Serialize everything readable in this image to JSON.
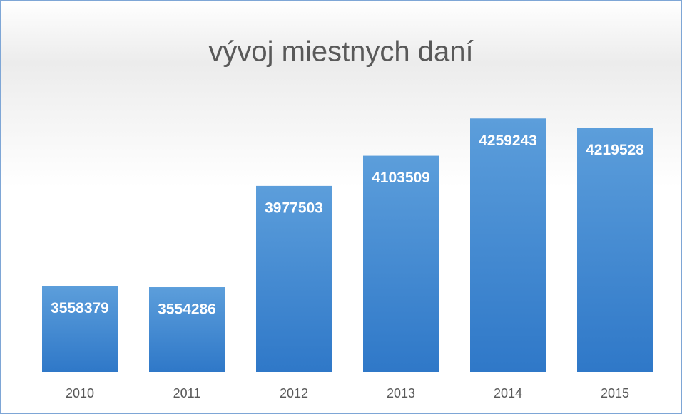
{
  "chart_data": {
    "type": "bar",
    "title": "vývoj miestnych daní",
    "categories": [
      "2010",
      "2011",
      "2012",
      "2013",
      "2014",
      "2015"
    ],
    "values": [
      3558379,
      3554286,
      3977503,
      4103509,
      4259243,
      4219528
    ],
    "color": "#3f86d0",
    "ylim": [
      3200000,
      4400000
    ]
  }
}
